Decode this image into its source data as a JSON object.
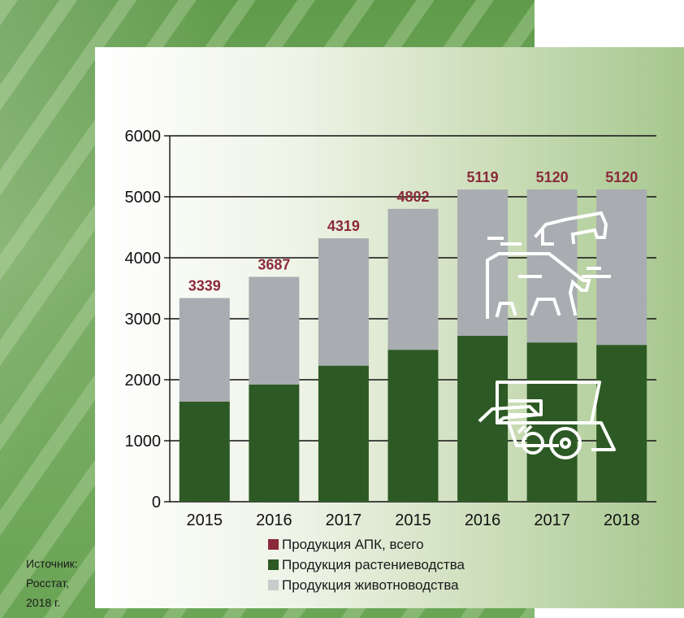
{
  "colors": {
    "plant": "#2d5a24",
    "animal": "#a9acb0",
    "total_label": "#8b2a3b",
    "axis": "#111111"
  },
  "source": {
    "line1": "Источник:",
    "line2": "Росстат,",
    "line3": "2018 г."
  },
  "legend": {
    "total": "Продукция АПК, всего",
    "plant": "Продукция растениеводства",
    "animal": "Продукция животноводства"
  },
  "chart_data": {
    "type": "bar",
    "stacked": true,
    "categories": [
      "2015",
      "2016",
      "2017",
      "2015",
      "2016",
      "2017",
      "2018"
    ],
    "series": [
      {
        "name": "Продукция растениеводства",
        "values": [
          1640,
          1920,
          2230,
          2490,
          2720,
          2610,
          2570
        ]
      },
      {
        "name": "Продукция животноводства",
        "values": [
          1699,
          1767,
          2089,
          2312,
          2399,
          2510,
          2550
        ]
      }
    ],
    "totals": [
      3339,
      3687,
      4319,
      4802,
      5119,
      5120,
      5120
    ],
    "total_labels": [
      "3339",
      "3687",
      "4319",
      "4802",
      "5119",
      "5120",
      "5120"
    ],
    "yticks": [
      "0",
      "1000",
      "2000",
      "3000",
      "4000",
      "5000",
      "6000"
    ],
    "ylim": [
      0,
      6000
    ],
    "grid": true,
    "legend_position": "bottom-right"
  }
}
